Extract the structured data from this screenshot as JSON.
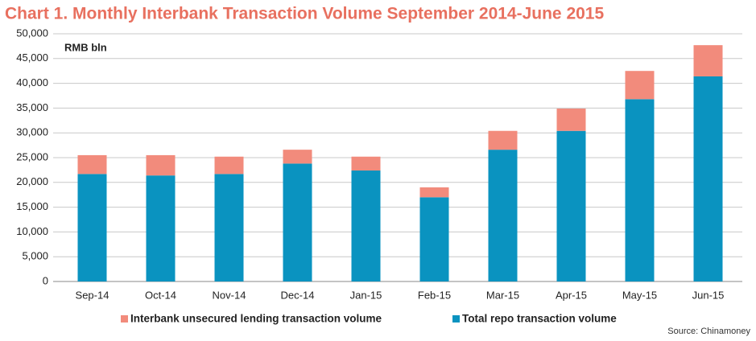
{
  "chart_data": {
    "type": "stacked_bar",
    "title": "Chart 1. Monthly Interbank Transaction Volume September 2014-June 2015",
    "unit_label": "RMB bln",
    "source": "Source: Chinamoney",
    "categories": [
      "Sep-14",
      "Oct-14",
      "Nov-14",
      "Dec-14",
      "Jan-15",
      "Feb-15",
      "Mar-15",
      "Apr-15",
      "May-15",
      "Jun-15"
    ],
    "series": [
      {
        "name": "Interbank unsecured lending transaction volume",
        "color": "#f28b7c",
        "values": [
          3800,
          4100,
          3500,
          2800,
          2800,
          2000,
          3800,
          4500,
          5700,
          6300
        ]
      },
      {
        "name": "Total repo transaction volume",
        "color": "#0a93c0",
        "values": [
          21700,
          21400,
          21700,
          23800,
          22400,
          17000,
          26600,
          30400,
          36800,
          41400
        ]
      }
    ],
    "ylim": [
      0,
      50000
    ],
    "yticks": [
      0,
      {
        "value": 5000,
        "label": "5,000"
      },
      {
        "value": 10000,
        "label": "10,000"
      },
      {
        "value": 15000,
        "label": "15,000"
      },
      {
        "value": 20000,
        "label": "20,000"
      },
      {
        "value": 25000,
        "label": "25,000"
      },
      {
        "value": 30000,
        "label": "30,000"
      },
      {
        "value": 35000,
        "label": "35,000"
      },
      {
        "value": 40000,
        "label": "40,000"
      },
      {
        "value": 45000,
        "label": "45,000"
      },
      {
        "value": 50000,
        "label": "50,000"
      }
    ],
    "grid": true
  }
}
